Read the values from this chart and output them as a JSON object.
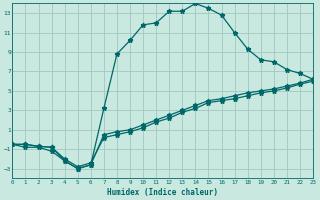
{
  "xlabel": "Humidex (Indice chaleur)",
  "background_color": "#c8e8e0",
  "grid_color": "#a0c8c0",
  "line_color": "#006868",
  "line1_x": [
    0,
    1,
    2,
    3,
    4,
    5,
    6,
    7,
    8,
    9,
    10,
    11,
    12,
    13,
    14,
    15,
    16,
    17,
    18,
    19,
    20,
    21,
    22,
    23
  ],
  "line1_y": [
    -0.5,
    -0.8,
    -0.8,
    -1.2,
    -2.2,
    -3.0,
    -2.6,
    3.2,
    8.8,
    10.2,
    11.8,
    12.0,
    13.2,
    13.2,
    14.0,
    13.5,
    12.8,
    11.0,
    9.3,
    8.2,
    8.0,
    7.2,
    6.8,
    6.2
  ],
  "line2_x": [
    0,
    1,
    2,
    3,
    4,
    5,
    6,
    7,
    8,
    9,
    10,
    11,
    12,
    13,
    14,
    15,
    16,
    17,
    18,
    19,
    20,
    21,
    22,
    23
  ],
  "line2_y": [
    -0.5,
    -0.5,
    -0.7,
    -0.8,
    -2.2,
    -3.0,
    -2.6,
    0.5,
    0.8,
    1.0,
    1.5,
    2.0,
    2.5,
    3.0,
    3.5,
    4.0,
    4.2,
    4.5,
    4.8,
    5.0,
    5.2,
    5.5,
    5.8,
    6.2
  ],
  "line3_x": [
    0,
    1,
    2,
    3,
    4,
    5,
    6,
    7,
    8,
    9,
    10,
    11,
    12,
    13,
    14,
    15,
    16,
    17,
    18,
    19,
    20,
    21,
    22,
    23
  ],
  "line3_y": [
    -0.5,
    -0.5,
    -0.7,
    -0.8,
    -2.0,
    -2.8,
    -2.4,
    0.2,
    0.5,
    0.8,
    1.2,
    1.8,
    2.2,
    2.8,
    3.2,
    3.8,
    4.0,
    4.2,
    4.5,
    4.8,
    5.0,
    5.3,
    5.7,
    6.0
  ],
  "xlim": [
    0,
    23
  ],
  "ylim": [
    -4,
    14
  ],
  "yticks": [
    -3,
    -1,
    1,
    3,
    5,
    7,
    9,
    11,
    13
  ],
  "xticks": [
    0,
    1,
    2,
    3,
    4,
    5,
    6,
    7,
    8,
    9,
    10,
    11,
    12,
    13,
    14,
    15,
    16,
    17,
    18,
    19,
    20,
    21,
    22,
    23
  ]
}
